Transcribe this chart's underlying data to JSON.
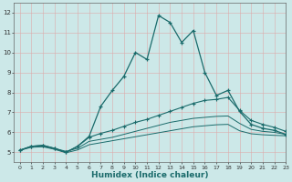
{
  "xlabel": "Humidex (Indice chaleur)",
  "xlim": [
    -0.5,
    23
  ],
  "ylim": [
    4.5,
    12.5
  ],
  "yticks": [
    5,
    6,
    7,
    8,
    9,
    10,
    11,
    12
  ],
  "background_color": "#cce8e8",
  "grid_color": "#aad0d0",
  "line_color": "#1a6b6b",
  "line1_x": [
    0,
    1,
    2,
    3,
    4,
    5,
    6,
    7,
    8,
    9,
    10,
    11,
    12,
    13,
    14,
    15,
    16,
    17,
    18,
    19,
    20,
    21,
    22,
    23
  ],
  "line1_y": [
    5.1,
    5.3,
    5.35,
    5.2,
    5.0,
    5.3,
    5.8,
    7.3,
    8.1,
    8.8,
    10.0,
    9.65,
    11.85,
    11.5,
    10.5,
    11.1,
    9.0,
    7.85,
    8.1,
    7.05,
    6.4,
    6.2,
    6.1,
    5.9
  ],
  "line2_x": [
    0,
    1,
    2,
    3,
    4,
    5,
    6,
    7,
    8,
    9,
    10,
    11,
    12,
    13,
    14,
    15,
    16,
    17,
    18,
    19,
    20,
    21,
    22,
    23
  ],
  "line2_y": [
    5.1,
    5.3,
    5.35,
    5.2,
    5.0,
    5.3,
    5.75,
    5.95,
    6.1,
    6.3,
    6.5,
    6.65,
    6.85,
    7.05,
    7.25,
    7.45,
    7.6,
    7.65,
    7.75,
    7.1,
    6.6,
    6.4,
    6.25,
    6.05
  ],
  "line3_x": [
    0,
    1,
    2,
    3,
    4,
    5,
    6,
    7,
    8,
    9,
    10,
    11,
    12,
    13,
    14,
    15,
    16,
    17,
    18,
    19,
    20,
    21,
    22,
    23
  ],
  "line3_y": [
    5.1,
    5.3,
    5.3,
    5.2,
    5.05,
    5.2,
    5.55,
    5.65,
    5.75,
    5.9,
    6.05,
    6.2,
    6.35,
    6.5,
    6.6,
    6.7,
    6.75,
    6.8,
    6.82,
    6.45,
    6.15,
    6.05,
    6.0,
    5.9
  ],
  "line4_x": [
    0,
    1,
    2,
    3,
    4,
    5,
    6,
    7,
    8,
    9,
    10,
    11,
    12,
    13,
    14,
    15,
    16,
    17,
    18,
    19,
    20,
    21,
    22,
    23
  ],
  "line4_y": [
    5.1,
    5.25,
    5.28,
    5.15,
    4.98,
    5.12,
    5.38,
    5.48,
    5.58,
    5.68,
    5.78,
    5.88,
    5.98,
    6.08,
    6.18,
    6.28,
    6.33,
    6.38,
    6.4,
    6.08,
    5.93,
    5.88,
    5.85,
    5.83
  ]
}
